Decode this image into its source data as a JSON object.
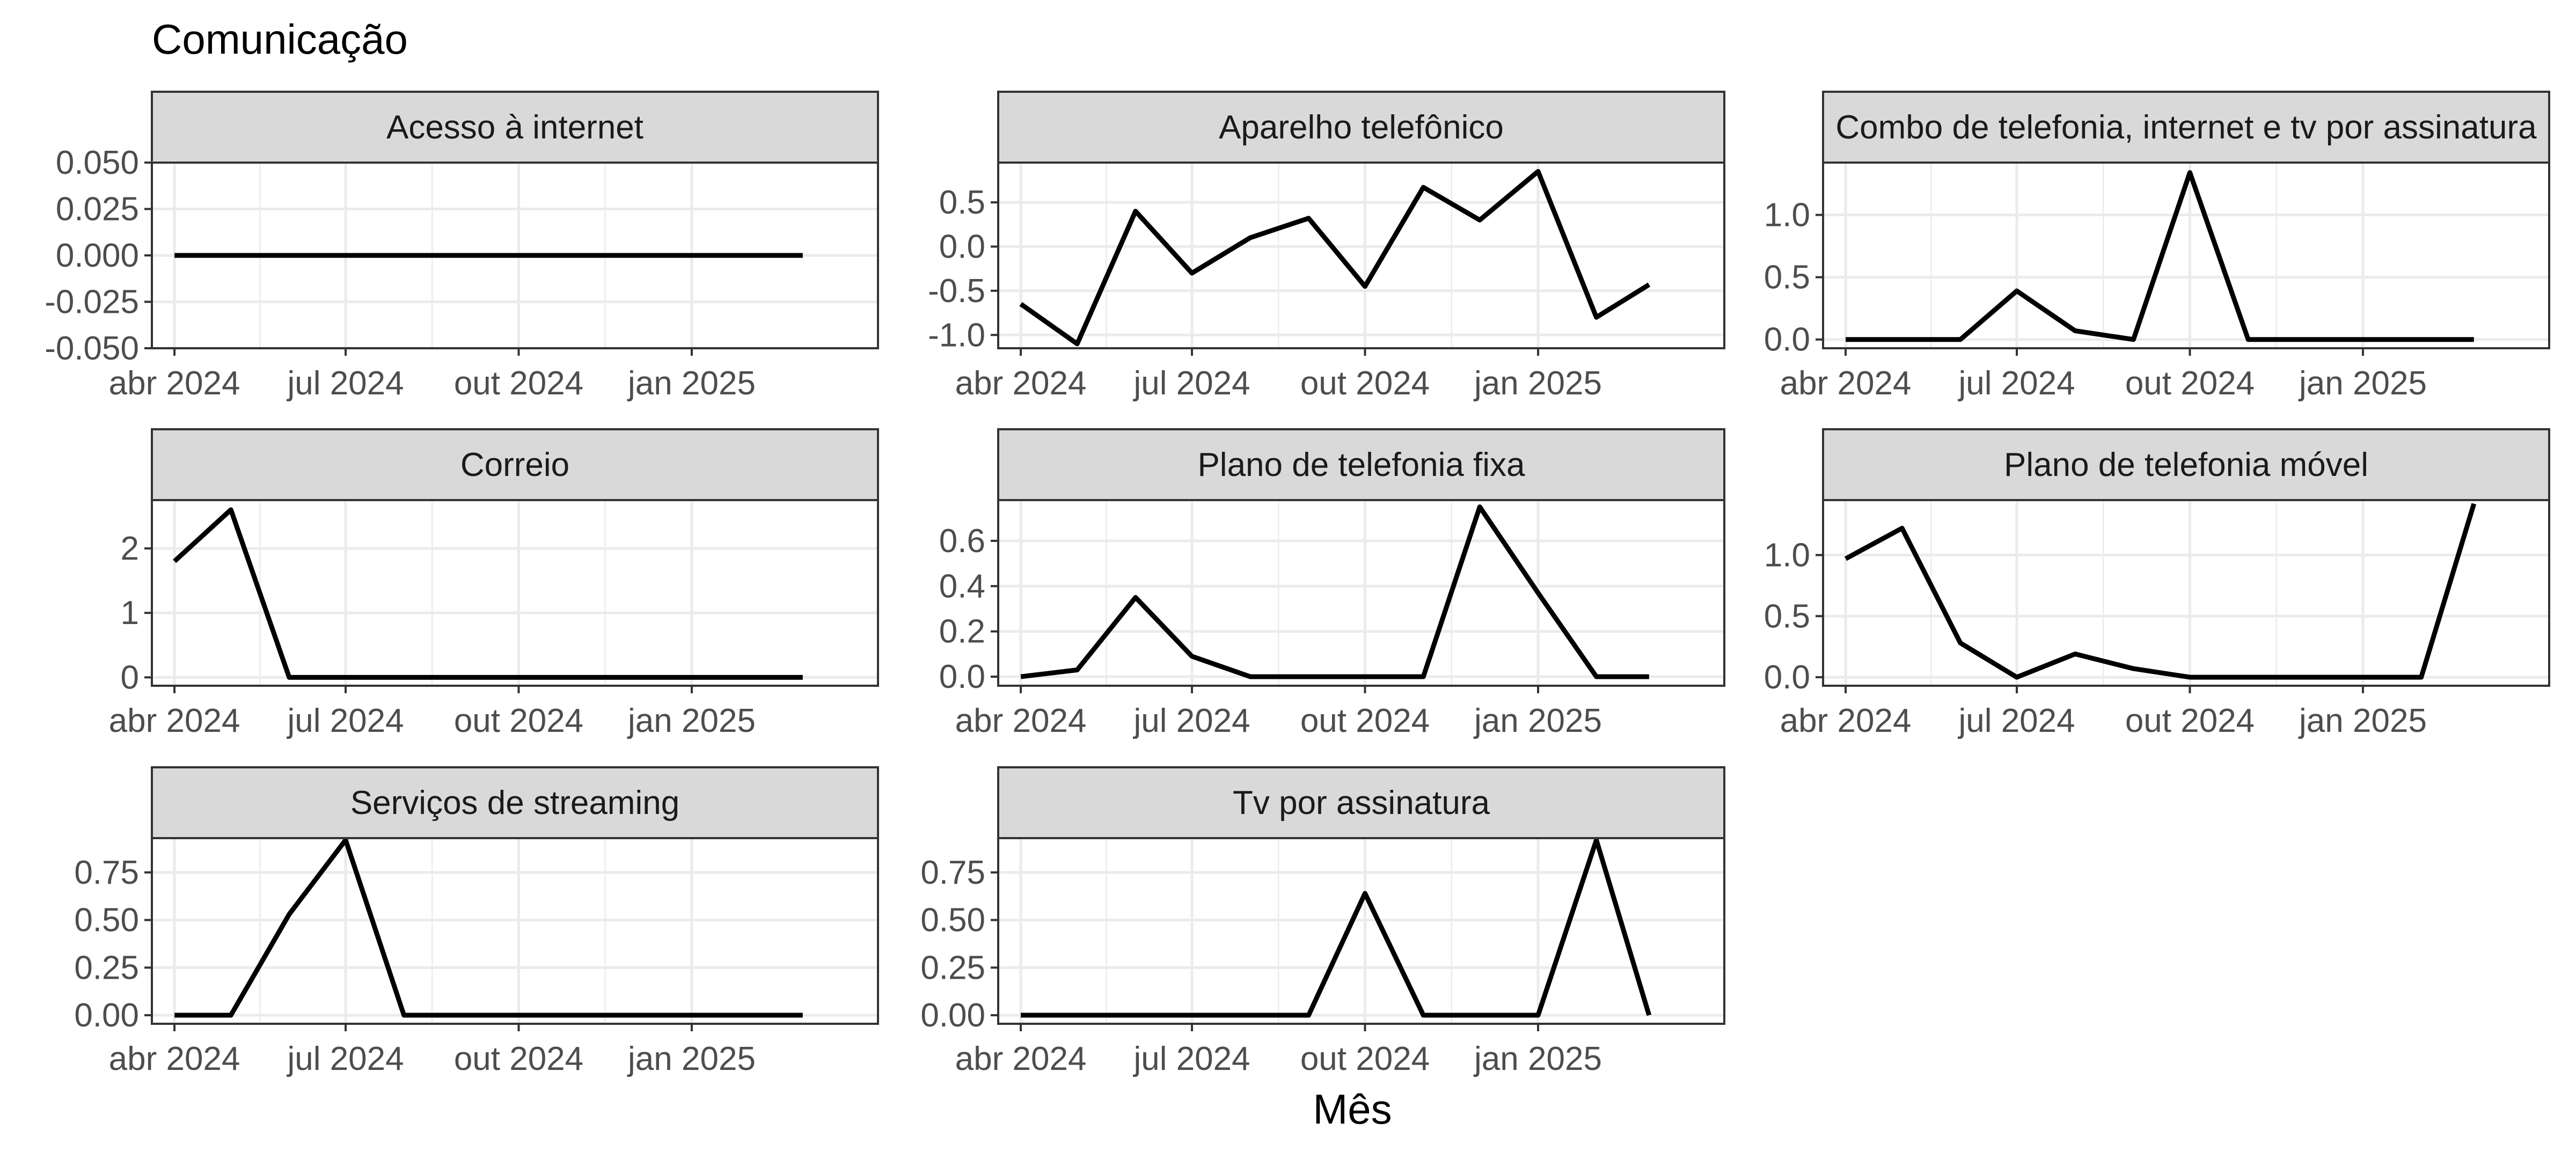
{
  "title": "Comunicação",
  "xlabel": "Mês",
  "colors": {
    "line": "#000000",
    "strip_fill": "#d9d9d9",
    "strip_border": "#333333",
    "panel_border": "#333333",
    "grid": "#ebebeb",
    "tick_text": "#4d4d4d"
  },
  "chart_data": {
    "type": "line",
    "layout": "facet-grid 3x3",
    "grid": true,
    "x": [
      "2024-04",
      "2024-05",
      "2024-06",
      "2024-07",
      "2024-08",
      "2024-09",
      "2024-10",
      "2024-11",
      "2024-12",
      "2025-01",
      "2025-02",
      "2025-03"
    ],
    "x_ticks": [
      {
        "value": "2024-04",
        "label": "abr 2024"
      },
      {
        "value": "2024-07",
        "label": "jul 2024"
      },
      {
        "value": "2024-10",
        "label": "out 2024"
      },
      {
        "value": "2025-01",
        "label": "jan 2025"
      }
    ],
    "xlim": [
      "2024-03-20",
      "2025-04-10"
    ],
    "panels": [
      {
        "title": "Acesso à internet",
        "ylim": [
          -0.05,
          0.05
        ],
        "yticks": [
          -0.05,
          -0.025,
          0,
          0.025,
          0.05
        ],
        "ytick_labels": [
          "-0.050",
          "-0.025",
          "0.000",
          "0.025",
          "0.050"
        ],
        "values": [
          0,
          0,
          0,
          0,
          0,
          0,
          0,
          0,
          0,
          0,
          0,
          0
        ]
      },
      {
        "title": "Aparelho telefônico",
        "ylim": [
          -1.15,
          0.95
        ],
        "yticks": [
          -1.0,
          -0.5,
          0.0,
          0.5
        ],
        "ytick_labels": [
          "-1.0",
          "-0.5",
          "0.0",
          "0.5"
        ],
        "values": [
          -0.65,
          -1.1,
          0.4,
          -0.3,
          0.1,
          0.32,
          -0.45,
          0.67,
          0.3,
          0.85,
          -0.8,
          -0.43
        ]
      },
      {
        "title": "Combo de telefonia, internet e tv por assinatura",
        "ylim": [
          -0.07,
          1.42
        ],
        "yticks": [
          0.0,
          0.5,
          1.0
        ],
        "ytick_labels": [
          "0.0",
          "0.5",
          "1.0"
        ],
        "values": [
          0,
          0,
          0,
          0.39,
          0.07,
          0,
          1.34,
          0,
          0,
          0,
          0,
          0
        ]
      },
      {
        "title": "Correio",
        "ylim": [
          -0.13,
          2.75
        ],
        "yticks": [
          0,
          1,
          2
        ],
        "ytick_labels": [
          "0",
          "1",
          "2"
        ],
        "values": [
          1.8,
          2.6,
          0,
          0,
          0,
          0,
          0,
          0,
          0,
          0,
          0,
          0
        ]
      },
      {
        "title": "Plano de telefonia fixa",
        "ylim": [
          -0.04,
          0.78
        ],
        "yticks": [
          0.0,
          0.2,
          0.4,
          0.6
        ],
        "ytick_labels": [
          "0.0",
          "0.2",
          "0.4",
          "0.6"
        ],
        "values": [
          0,
          0.03,
          0.35,
          0.09,
          0,
          0,
          0,
          0,
          0.75,
          0.37,
          0,
          0
        ]
      },
      {
        "title": "Plano de telefonia móvel",
        "ylim": [
          -0.07,
          1.45
        ],
        "yticks": [
          0.0,
          0.5,
          1.0
        ],
        "ytick_labels": [
          "0.0",
          "0.5",
          "1.0"
        ],
        "values": [
          0.97,
          1.22,
          0.28,
          0,
          0.19,
          0.07,
          0,
          0,
          0,
          0,
          0,
          1.42
        ]
      },
      {
        "title": "Serviços de streaming",
        "ylim": [
          -0.045,
          0.93
        ],
        "yticks": [
          0.0,
          0.25,
          0.5,
          0.75
        ],
        "ytick_labels": [
          "0.00",
          "0.25",
          "0.50",
          "0.75"
        ],
        "values": [
          0,
          0,
          0.53,
          0.92,
          0,
          0,
          0,
          0,
          0,
          0,
          0,
          0
        ]
      },
      {
        "title": "Tv por assinatura",
        "ylim": [
          -0.045,
          0.93
        ],
        "yticks": [
          0.0,
          0.25,
          0.5,
          0.75
        ],
        "ytick_labels": [
          "0.00",
          "0.25",
          "0.50",
          "0.75"
        ],
        "values": [
          0,
          0,
          0,
          0,
          0,
          0,
          0.64,
          0,
          0,
          0,
          0.92,
          0
        ]
      }
    ]
  }
}
